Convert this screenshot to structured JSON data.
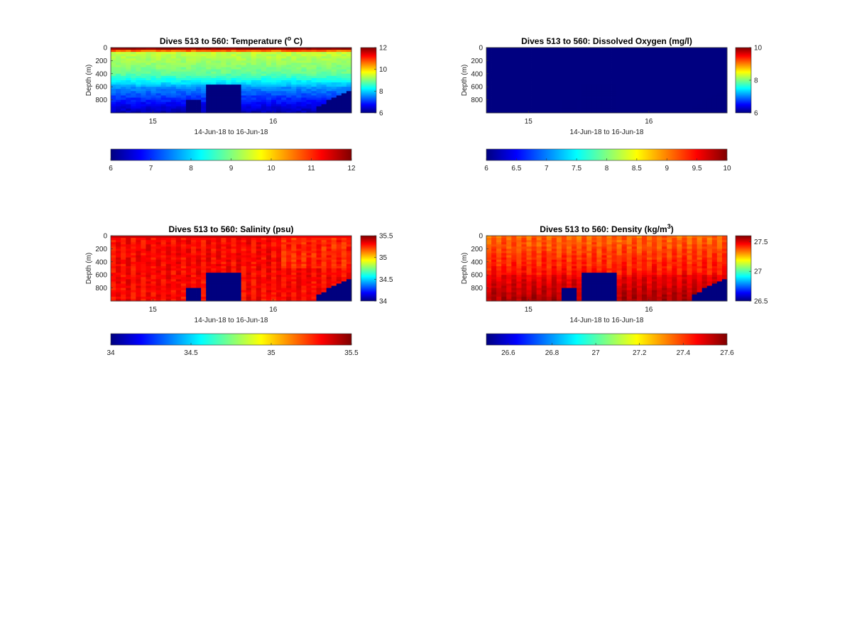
{
  "chart_data": [
    {
      "type": "heatmap",
      "title": "Dives 513 to 560: Temperature (",
      "title_sup": "o",
      "title_end": " C)",
      "ylabel": "Depth (m)",
      "xlabel": "14-Jun-18 to 16-Jun-18",
      "y_ticks": [
        "0",
        "200",
        "400",
        "600",
        "800"
      ],
      "ylim": [
        0,
        1000
      ],
      "x_ticks": [
        {
          "label": "15",
          "day": 15
        },
        {
          "label": "16",
          "day": 16
        }
      ],
      "xlim_days": [
        14.65,
        16.65
      ],
      "clim": [
        6,
        12
      ],
      "side_colorbar_ticks": [
        "6",
        "8",
        "10",
        "12"
      ],
      "bottom_colorbar_ticks": [
        "6",
        "7",
        "8",
        "9",
        "10",
        "11",
        "12"
      ],
      "field": "temperature"
    },
    {
      "type": "heatmap",
      "title": "Dives 513 to 560: Dissolved Oxygen (mg/l)",
      "ylabel": "Depth (m)",
      "xlabel": "14-Jun-18 to 16-Jun-18",
      "y_ticks": [
        "0",
        "200",
        "400",
        "600",
        "800"
      ],
      "ylim": [
        0,
        1000
      ],
      "x_ticks": [
        {
          "label": "15",
          "day": 15
        },
        {
          "label": "16",
          "day": 16
        }
      ],
      "xlim_days": [
        14.65,
        16.65
      ],
      "clim": [
        6,
        10
      ],
      "side_colorbar_ticks": [
        "6",
        "8",
        "10"
      ],
      "bottom_colorbar_ticks": [
        "6",
        "6.5",
        "7",
        "7.5",
        "8",
        "8.5",
        "9",
        "9.5",
        "10"
      ],
      "field": "oxygen"
    },
    {
      "type": "heatmap",
      "title": "Dives 513 to 560: Salinity (psu)",
      "ylabel": "Depth (m)",
      "xlabel": "14-Jun-18 to 16-Jun-18",
      "y_ticks": [
        "0",
        "200",
        "400",
        "600",
        "800"
      ],
      "ylim": [
        0,
        1000
      ],
      "x_ticks": [
        {
          "label": "15",
          "day": 15
        },
        {
          "label": "16",
          "day": 16
        }
      ],
      "xlim_days": [
        14.65,
        16.65
      ],
      "clim": [
        34,
        35.5
      ],
      "side_colorbar_ticks": [
        "34",
        "34.5",
        "35",
        "35.5"
      ],
      "bottom_colorbar_ticks": [
        "34",
        "34.5",
        "35",
        "35.5"
      ],
      "field": "salinity"
    },
    {
      "type": "heatmap",
      "title": "Dives 513 to 560: Density (kg/m",
      "title_sup": "3",
      "title_end": ")",
      "ylabel": "Depth (m)",
      "xlabel": "14-Jun-18 to 16-Jun-18",
      "y_ticks": [
        "0",
        "200",
        "400",
        "600",
        "800"
      ],
      "ylim": [
        0,
        1000
      ],
      "x_ticks": [
        {
          "label": "15",
          "day": 15
        },
        {
          "label": "16",
          "day": 16
        }
      ],
      "xlim_days": [
        14.65,
        16.65
      ],
      "clim": [
        26.5,
        27.6
      ],
      "side_colorbar_ticks": [
        "26.5",
        "27",
        "27.5"
      ],
      "bottom_colorbar_ticks": [
        "26.6",
        "26.8",
        "27",
        "27.2",
        "27.4",
        "27.6"
      ],
      "field": "density"
    }
  ]
}
